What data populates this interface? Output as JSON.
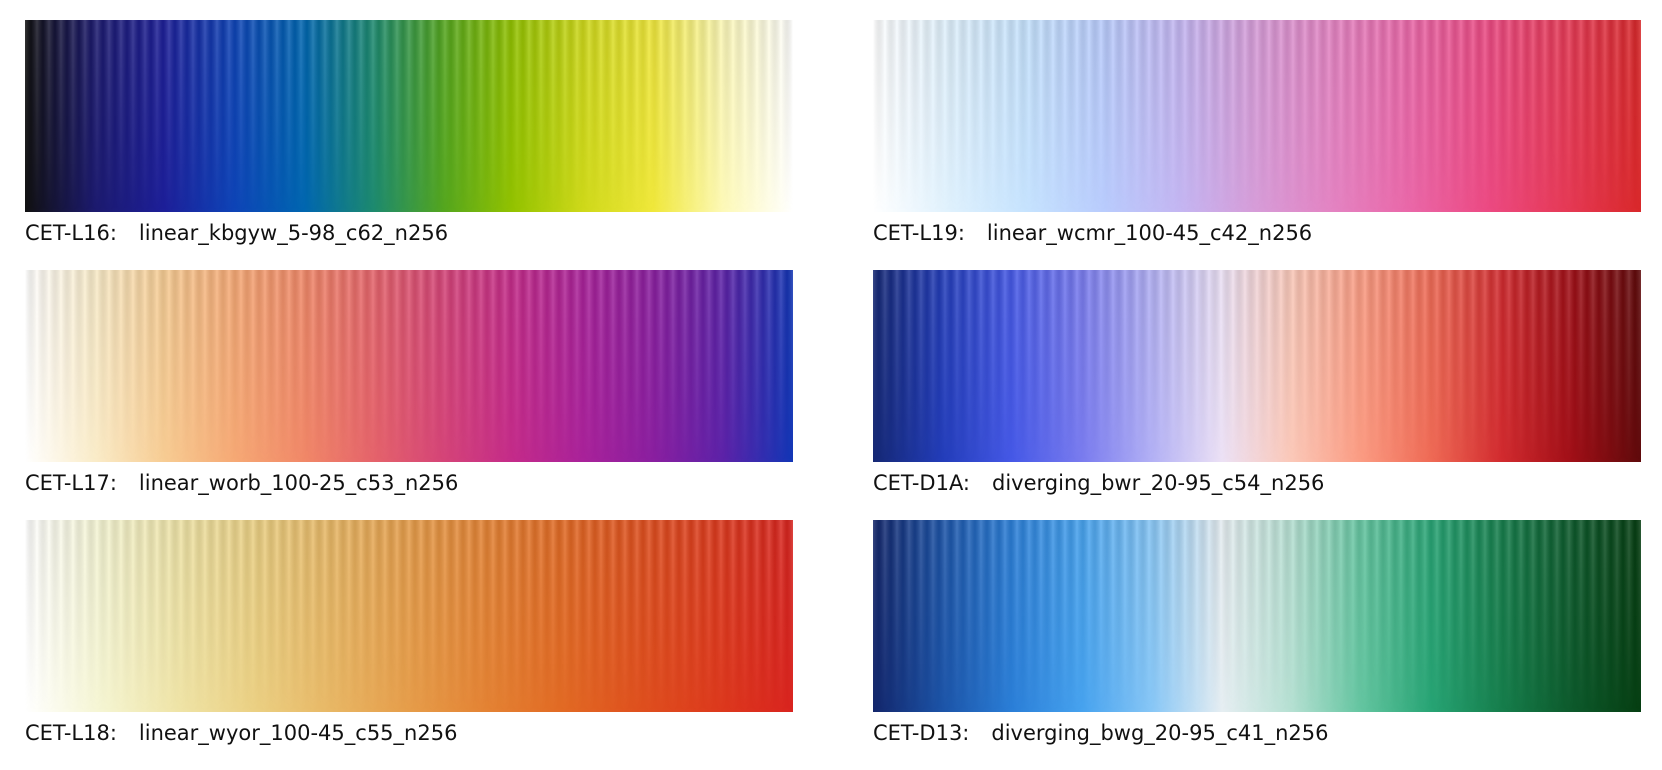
{
  "colormaps": [
    {
      "code": "CET-L16:",
      "name": "linear_kbgyw_5-98_c62_n256",
      "stops": [
        "#111111",
        "#1c1a6e",
        "#1d1f99",
        "#0e44b7",
        "#0066b0",
        "#1d8a6e",
        "#54a61e",
        "#94c300",
        "#cfd91a",
        "#f0e83b",
        "#fdf9b8",
        "#ffffff"
      ]
    },
    {
      "code": "CET-L19:",
      "name": "linear_wcmr_100-45_c42_n256",
      "stops": [
        "#ffffff",
        "#dff1fd",
        "#c6e3fe",
        "#b9ccfd",
        "#c4b6f2",
        "#d79cd8",
        "#e483c2",
        "#ea67a8",
        "#ec4a83",
        "#e63a57",
        "#d9282a"
      ]
    },
    {
      "code": "CET-L17:",
      "name": "linear_worb_100-25_c53_n256",
      "stops": [
        "#ffffff",
        "#faecc9",
        "#f7cc93",
        "#f6a975",
        "#f18868",
        "#e5636b",
        "#d54478",
        "#c42b8a",
        "#a9229a",
        "#8a1fa0",
        "#5c22a8",
        "#1236b6"
      ]
    },
    {
      "code": "CET-D1A:",
      "name": "diverging_bwr_20-95_c54_n256",
      "stops": [
        "#152874",
        "#233dba",
        "#4659e7",
        "#7a7cef",
        "#b3b1f5",
        "#ece1f5",
        "#fbc8b8",
        "#fb9b82",
        "#ef6a55",
        "#d22b2f",
        "#a10f17",
        "#5f0a0b"
      ]
    },
    {
      "code": "CET-L18:",
      "name": "linear_wyor_100-45_c55_n256",
      "stops": [
        "#ffffff",
        "#f5f5d2",
        "#efe4a7",
        "#ebd083",
        "#e8b765",
        "#e69d4a",
        "#e48334",
        "#e26a24",
        "#df501e",
        "#dd3a1d",
        "#d9241f"
      ]
    },
    {
      "code": "CET-D13:",
      "name": "diverging_bwg_20-95_c41_n256",
      "stops": [
        "#13266b",
        "#1c54a8",
        "#2b7fd8",
        "#47a3ef",
        "#88c7f6",
        "#e6eef2",
        "#b5e0d2",
        "#63c5a0",
        "#27a474",
        "#167e4c",
        "#0d5a2c",
        "#063e12"
      ]
    }
  ]
}
